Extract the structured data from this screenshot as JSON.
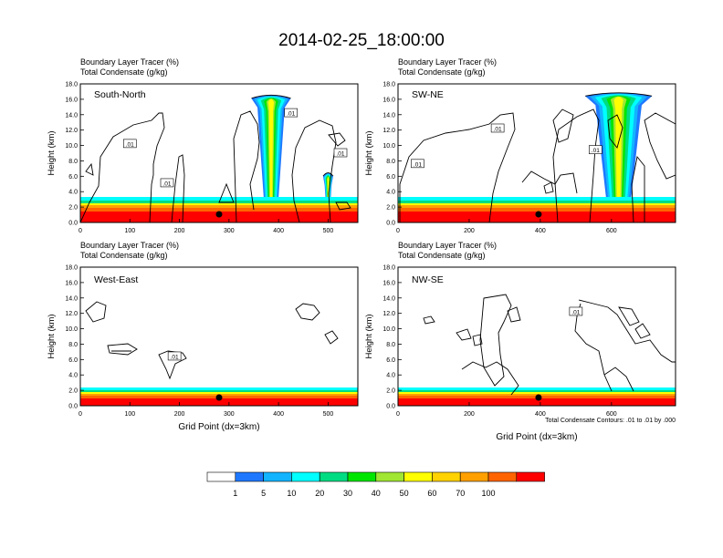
{
  "title": "2014-02-25_18:00:00",
  "footnote": "Total Condensate Contours: .01 to .01 by .000",
  "colorbar": {
    "colors": [
      "#ffffff",
      "#1e78ff",
      "#12b4ff",
      "#00ffff",
      "#00dc82",
      "#00e600",
      "#a0e632",
      "#ffff00",
      "#ffd200",
      "#ffa000",
      "#ff6400",
      "#ff0000"
    ],
    "labels": [
      "1",
      "5",
      "10",
      "20",
      "30",
      "40",
      "50",
      "60",
      "70",
      "100"
    ]
  },
  "chart_data": [
    {
      "type": "heatmap",
      "panel": "South-North",
      "header_line1": "Boundary Layer Tracer   (%)",
      "header_line2": "Total Condensate   (g/kg)",
      "xlim": [
        0,
        560
      ],
      "xticks": [
        "0",
        "100",
        "200",
        "300",
        "400",
        "500"
      ],
      "ylim": [
        0,
        18
      ],
      "yticks": [
        "0.0",
        "2.0",
        "4.0",
        "6.0",
        "8.0",
        "10.0",
        "12.0",
        "14.0",
        "16.0",
        "18.0"
      ],
      "ylabel": "Height (km)",
      "xlabel": "",
      "marker_x": 280,
      "contour_labels": [
        {
          "text": ".01",
          "x": 100,
          "y": 10.2
        },
        {
          "text": ".01",
          "x": 175,
          "y": 5.1
        },
        {
          "text": ".01",
          "x": 425,
          "y": 14.2
        },
        {
          "text": ".01",
          "x": 525,
          "y": 9.0
        }
      ],
      "plumes": [
        {
          "x": 385,
          "base": 0.8,
          "top": 16.6,
          "width": 55
        },
        {
          "x": 500,
          "base": 0.8,
          "top": 6.5,
          "width": 14
        }
      ]
    },
    {
      "type": "heatmap",
      "panel": "SW-NE",
      "header_line1": "Boundary Layer Tracer   (%)",
      "header_line2": "Total Condensate   (g/kg)",
      "xlim": [
        0,
        780
      ],
      "xticks": [
        "0",
        "200",
        "400",
        "600"
      ],
      "ylim": [
        0,
        18
      ],
      "yticks": [
        "0.0",
        "2.0",
        "4.0",
        "6.0",
        "8.0",
        "10.0",
        "12.0",
        "14.0",
        "16.0",
        "18.0"
      ],
      "ylabel": "Height (km)",
      "xlabel": "",
      "marker_x": 395,
      "contour_labels": [
        {
          "text": ".01",
          "x": 55,
          "y": 7.6
        },
        {
          "text": ".01",
          "x": 280,
          "y": 12.2
        },
        {
          "text": ".01",
          "x": 555,
          "y": 9.4
        }
      ],
      "plumes": [
        {
          "x": 620,
          "base": 0.8,
          "top": 16.9,
          "width": 130
        }
      ]
    },
    {
      "type": "heatmap",
      "panel": "West-East",
      "header_line1": "Boundary Layer Tracer   (%)",
      "header_line2": "Total Condensate   (g/kg)",
      "xlim": [
        0,
        560
      ],
      "xticks": [
        "0",
        "100",
        "200",
        "300",
        "400",
        "500"
      ],
      "ylim": [
        0,
        18
      ],
      "yticks": [
        "0.0",
        "2.0",
        "4.0",
        "6.0",
        "8.0",
        "10.0",
        "12.0",
        "14.0",
        "16.0",
        "18.0"
      ],
      "ylabel": "Height (km)",
      "xlabel": "Grid Point (dx=3km)",
      "marker_x": 280,
      "contour_labels": [
        {
          "text": ".01",
          "x": 190,
          "y": 6.4
        }
      ],
      "plumes": []
    },
    {
      "type": "heatmap",
      "panel": "NW-SE",
      "header_line1": "Boundary Layer Tracer   (%)",
      "header_line2": "Total Condensate   (g/kg)",
      "xlim": [
        0,
        780
      ],
      "xticks": [
        "0",
        "200",
        "400",
        "600"
      ],
      "ylim": [
        0,
        18
      ],
      "yticks": [
        "0.0",
        "2.0",
        "4.0",
        "6.0",
        "8.0",
        "10.0",
        "12.0",
        "14.0",
        "16.0",
        "18.0"
      ],
      "ylabel": "Height (km)",
      "xlabel": "Grid Point (dx=3km)",
      "marker_x": 395,
      "contour_labels": [
        {
          "text": ".01",
          "x": 500,
          "y": 12.2
        }
      ],
      "plumes": []
    }
  ]
}
